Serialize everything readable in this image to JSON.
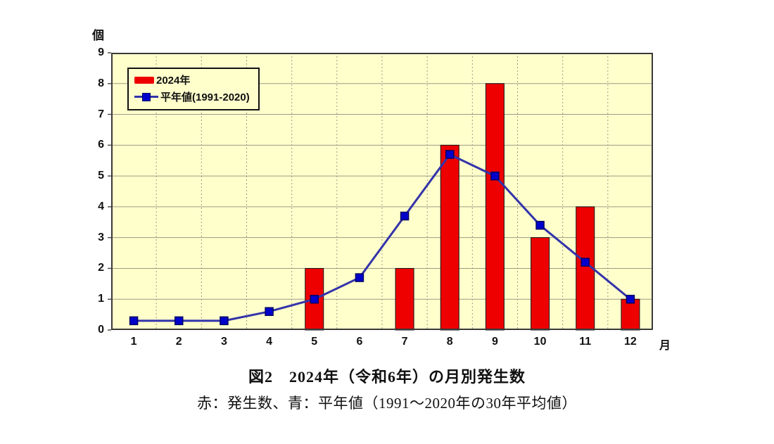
{
  "chart_data": {
    "type": "bar",
    "combo_note": "red vertical bars with blue line + square markers overlaid",
    "categories": [
      "1",
      "2",
      "3",
      "4",
      "5",
      "6",
      "7",
      "8",
      "9",
      "10",
      "11",
      "12"
    ],
    "series": [
      {
        "name": "2024年",
        "kind": "bar",
        "color": "#EE0000",
        "edge_color": "#111111",
        "values": [
          0,
          0,
          0,
          0,
          2,
          0,
          2,
          6,
          8,
          3,
          4,
          1
        ]
      },
      {
        "name": "平年値(1991-2020)",
        "kind": "line",
        "color": "#3333AA",
        "marker": "square",
        "marker_color": "#0000CC",
        "marker_edge": "#000066",
        "values": [
          0.3,
          0.3,
          0.3,
          0.6,
          1.0,
          1.7,
          3.7,
          5.7,
          5.0,
          3.4,
          2.2,
          1.0
        ]
      }
    ],
    "ylabel": "個",
    "xlabel": "月",
    "ylim": [
      0,
      9
    ],
    "y_ticks": [
      0,
      1,
      2,
      3,
      4,
      5,
      6,
      7,
      8,
      9
    ],
    "grid": {
      "horizontal": "solid",
      "vertical": "dashed at month boundaries"
    },
    "legend_position": "top-left inside plot",
    "plot_background": "#FFFFCC",
    "grid_color": "#9C9C85",
    "border_color": "#3A3A3A"
  },
  "caption": {
    "title": "図2　2024年（令和6年）の月別発生数",
    "subtitle": "赤：発生数、青：平年値（1991～2020年の30年平均値）"
  }
}
